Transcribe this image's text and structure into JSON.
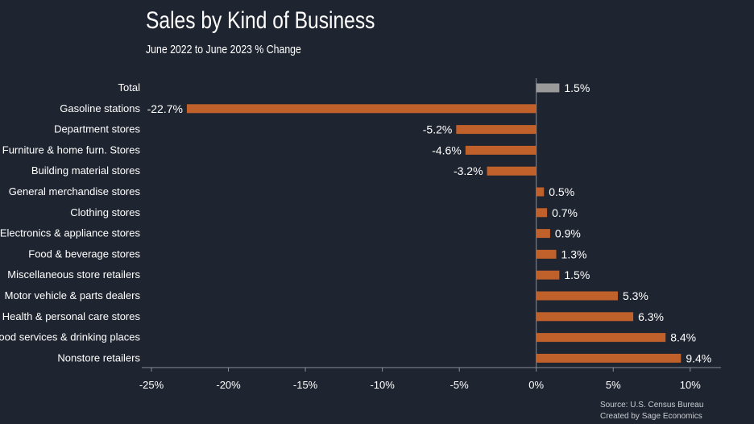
{
  "chart_data": {
    "type": "bar",
    "orientation": "horizontal",
    "title": "Sales by Kind of Business",
    "subtitle": "June 2022 to June 2023 % Change",
    "categories": [
      "Total",
      "Gasoline stations",
      "Department stores",
      "Furniture & home furn. Stores",
      "Building material stores",
      "General merchandise stores",
      "Clothing stores",
      "Electronics & appliance stores",
      "Food & beverage stores",
      "Miscellaneous store retailers",
      "Motor vehicle & parts dealers",
      "Health & personal care stores",
      "Food services & drinking places",
      "Nonstore retailers"
    ],
    "values": [
      1.5,
      -22.7,
      -5.2,
      -4.6,
      -3.2,
      0.5,
      0.7,
      0.9,
      1.3,
      1.5,
      5.3,
      6.3,
      8.4,
      9.4
    ],
    "value_labels": [
      "1.5%",
      "-22.7%",
      "-5.2%",
      "-4.6%",
      "-3.2%",
      "0.5%",
      "0.7%",
      "0.9%",
      "1.3%",
      "1.5%",
      "5.3%",
      "6.3%",
      "8.4%",
      "9.4%"
    ],
    "xlim": [
      -25,
      12
    ],
    "xticks": [
      -25,
      -20,
      -15,
      -10,
      -5,
      0,
      5,
      10
    ],
    "xtick_labels": [
      "-25%",
      "-20%",
      "-15%",
      "-10%",
      "-5%",
      "0%",
      "5%",
      "10%"
    ],
    "xlabel": "",
    "ylabel": "",
    "grid": false,
    "legend": "none",
    "colors": {
      "background": "#1f2530",
      "bar": "#c0602a",
      "total_bar": "#9a9a9a",
      "axis": "#8a8f98",
      "text": "#ffffff"
    }
  },
  "source": {
    "line1": "Source: U.S. Census Bureau",
    "line2": "Created by Sage Economics"
  }
}
